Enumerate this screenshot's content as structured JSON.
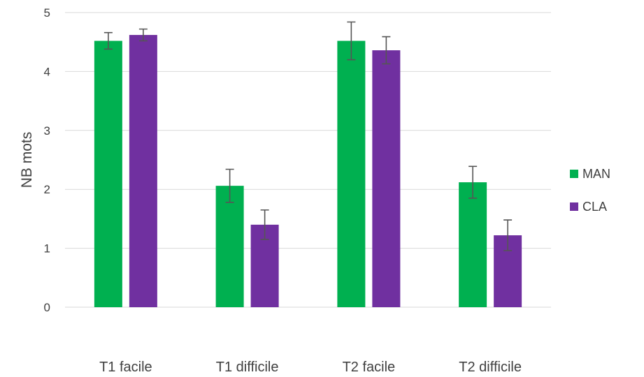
{
  "chart_data": {
    "type": "bar",
    "title": "",
    "xlabel": "",
    "ylabel": "NB mots",
    "ylim": [
      0,
      5
    ],
    "yticks": [
      0,
      1,
      2,
      3,
      4,
      5
    ],
    "grid": true,
    "legend_position": "right",
    "categories": [
      "T1 facile",
      "T1 difficile",
      "T2 facile",
      "T2 difficile"
    ],
    "series": [
      {
        "name": "MAN",
        "color": "#00b050",
        "values": [
          4.52,
          2.06,
          4.52,
          2.12
        ],
        "errors": [
          0.14,
          0.28,
          0.32,
          0.27
        ]
      },
      {
        "name": "CLA",
        "color": "#7030a0",
        "values": [
          4.62,
          1.4,
          4.36,
          1.22
        ],
        "errors": [
          0.1,
          0.25,
          0.23,
          0.26
        ]
      }
    ]
  }
}
